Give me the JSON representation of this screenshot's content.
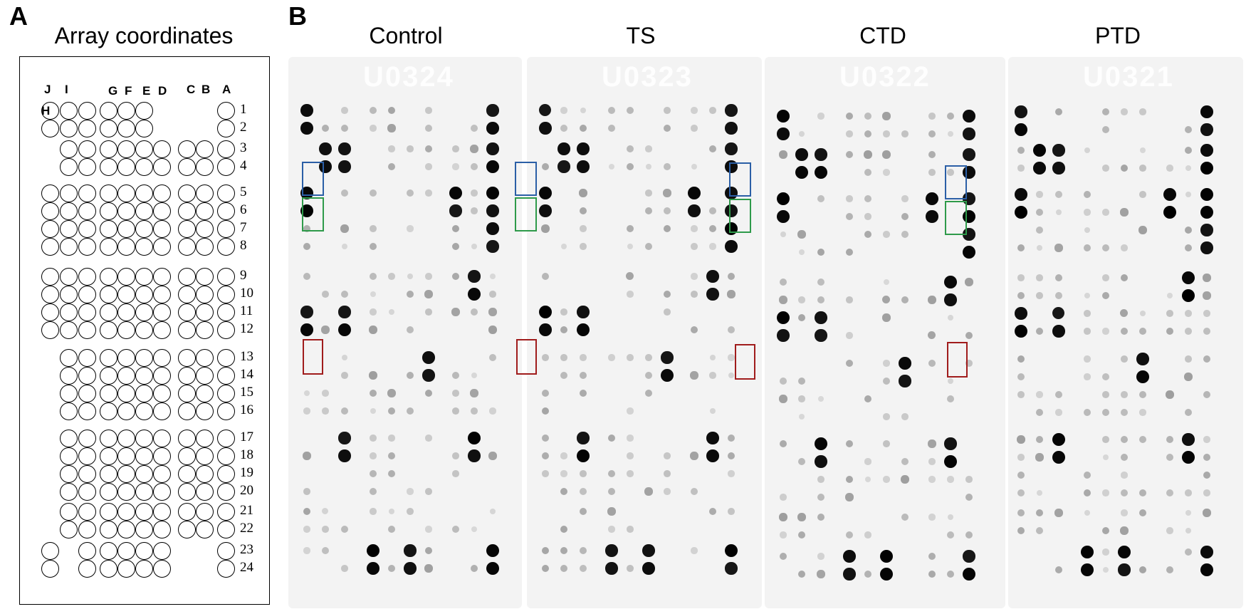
{
  "panel_a": {
    "letter": "A",
    "title": "Array coordinates",
    "column_letters": [
      "J",
      "I",
      "H",
      "G",
      "F",
      "E",
      "D",
      "C",
      "B",
      "A"
    ],
    "row_labels": [
      "1",
      "2",
      "3",
      "4",
      "5",
      "6",
      "7",
      "8",
      "9",
      "10",
      "11",
      "12",
      "13",
      "14",
      "15",
      "16",
      "17",
      "18",
      "19",
      "20",
      "21",
      "22",
      "23",
      "24"
    ]
  },
  "panel_b": {
    "letter": "B",
    "membranes": [
      {
        "title": "Control",
        "code": "U0324"
      },
      {
        "title": "TS",
        "code": "U0323"
      },
      {
        "title": "CTD",
        "code": "U0322"
      },
      {
        "title": "PTD",
        "code": "U0321"
      }
    ],
    "highlight_colors": {
      "blue": "#2b5fa6",
      "green": "#2e9a4a",
      "red": "#a01c1c"
    }
  }
}
